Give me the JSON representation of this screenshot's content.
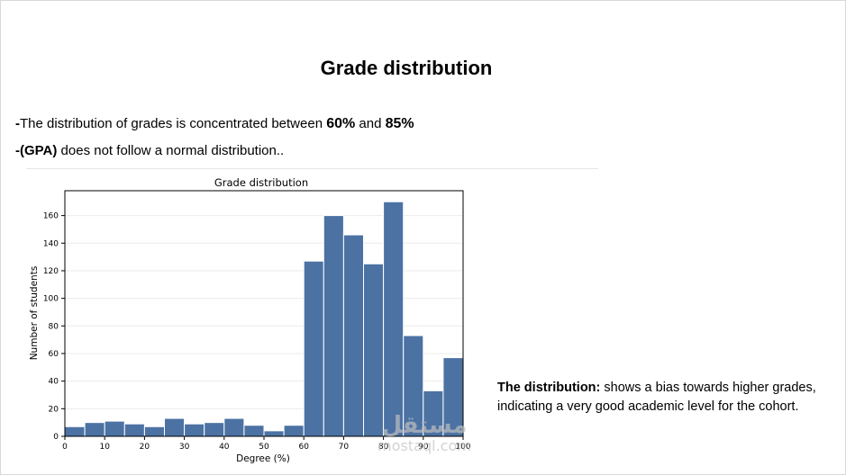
{
  "slide": {
    "title": "Grade distribution",
    "bullet1": {
      "dash": "-",
      "text": "The distribution of grades is concentrated between ",
      "low": "60%",
      "and": " and ",
      "high": "85%"
    },
    "bullet2": {
      "dash": "-",
      "gpa": "(GPA)",
      "text": " does not follow a normal distribution.."
    },
    "note": {
      "lead": "The distribution",
      "colon": ":",
      "text": " shows a bias towards higher grades, indicating a very good academic level for the cohort."
    },
    "watermark": {
      "arabic": "مستقل",
      "latin": "mostaql.com"
    }
  },
  "colors": {
    "bar_fill": "#4c72a4",
    "bar_edge": "#ffffff",
    "grid": "#ebebeb"
  },
  "chart_data": {
    "type": "bar",
    "title": "Grade distribution",
    "xlabel": "Degree (%)",
    "ylabel": "Number of students",
    "bin_width": 5,
    "bins": [
      {
        "x0": 0,
        "x1": 5,
        "value": 7
      },
      {
        "x0": 5,
        "x1": 10,
        "value": 10
      },
      {
        "x0": 10,
        "x1": 15,
        "value": 11
      },
      {
        "x0": 15,
        "x1": 20,
        "value": 9
      },
      {
        "x0": 20,
        "x1": 25,
        "value": 7
      },
      {
        "x0": 25,
        "x1": 30,
        "value": 13
      },
      {
        "x0": 30,
        "x1": 35,
        "value": 9
      },
      {
        "x0": 35,
        "x1": 40,
        "value": 10
      },
      {
        "x0": 40,
        "x1": 45,
        "value": 13
      },
      {
        "x0": 45,
        "x1": 50,
        "value": 8
      },
      {
        "x0": 50,
        "x1": 55,
        "value": 4
      },
      {
        "x0": 55,
        "x1": 60,
        "value": 8
      },
      {
        "x0": 60,
        "x1": 65,
        "value": 127
      },
      {
        "x0": 65,
        "x1": 70,
        "value": 160
      },
      {
        "x0": 70,
        "x1": 75,
        "value": 146
      },
      {
        "x0": 75,
        "x1": 80,
        "value": 125
      },
      {
        "x0": 80,
        "x1": 85,
        "value": 170
      },
      {
        "x0": 85,
        "x1": 90,
        "value": 73
      },
      {
        "x0": 90,
        "x1": 95,
        "value": 33
      },
      {
        "x0": 95,
        "x1": 100,
        "value": 57
      }
    ],
    "xlim": [
      0,
      100
    ],
    "ylim": [
      0,
      178
    ],
    "xticks": [
      "0",
      "10",
      "20",
      "30",
      "40",
      "50",
      "60",
      "70",
      "80",
      "90",
      "100"
    ],
    "yticks": [
      "0",
      "20",
      "40",
      "60",
      "80",
      "100",
      "120",
      "140",
      "160"
    ],
    "grid": "horizontal",
    "legend": "none"
  }
}
